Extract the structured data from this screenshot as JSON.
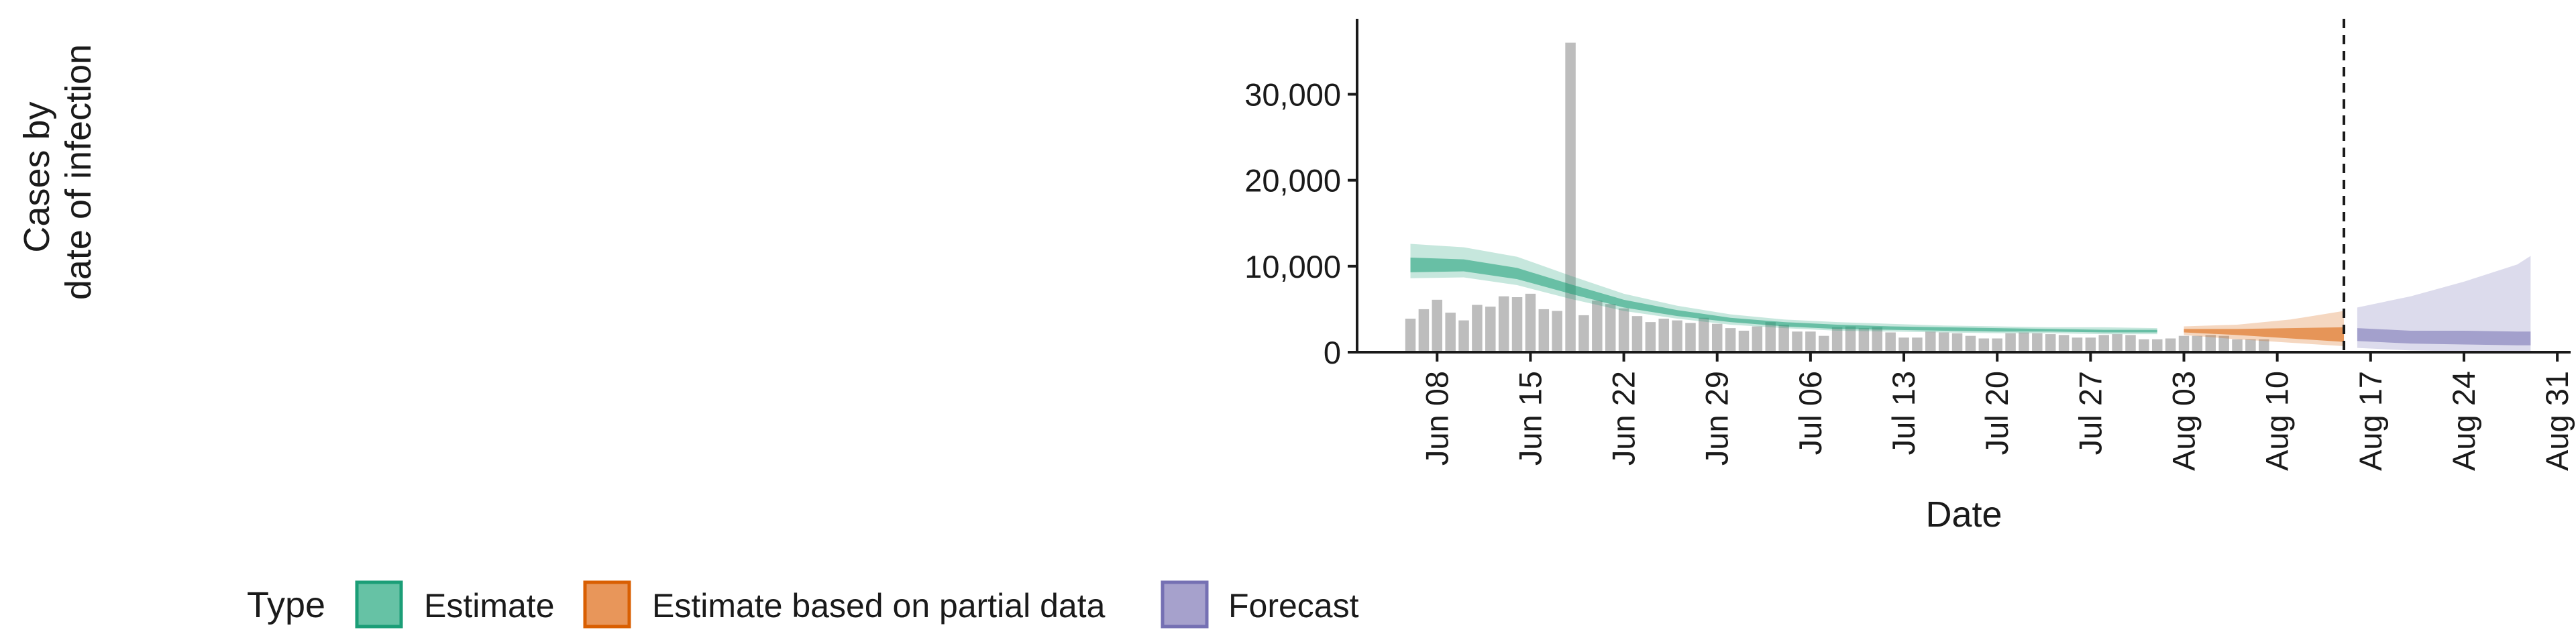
{
  "chart_data": {
    "type": "bar",
    "title": "",
    "xlabel": "Date",
    "ylabel_lines": [
      "Cases by",
      "date of infection"
    ],
    "ylim": [
      0,
      38000
    ],
    "yticks": [
      0,
      10000,
      20000,
      30000
    ],
    "ytick_labels": [
      "0",
      "10,000",
      "20,000",
      "30,000"
    ],
    "xlim": [
      "2020-06-02",
      "2020-09-01"
    ],
    "xticks": [
      "2020-06-08",
      "2020-06-15",
      "2020-06-22",
      "2020-06-29",
      "2020-07-06",
      "2020-07-13",
      "2020-07-20",
      "2020-07-27",
      "2020-08-03",
      "2020-08-10",
      "2020-08-17",
      "2020-08-24",
      "2020-08-31"
    ],
    "xtick_labels": [
      "Jun 08",
      "Jun 15",
      "Jun 22",
      "Jun 29",
      "Jul 06",
      "Jul 13",
      "Jul 20",
      "Jul 27",
      "Aug 03",
      "Aug 10",
      "Aug 17",
      "Aug 24",
      "Aug 31"
    ],
    "reference_line_date": "2020-08-15",
    "grid": false,
    "legend_position": "bottom",
    "bars": {
      "start_date": "2020-06-06",
      "color": "#bdbdbd",
      "values": [
        3900,
        5000,
        6100,
        4600,
        3700,
        5500,
        5300,
        6500,
        6400,
        6800,
        5000,
        4800,
        36000,
        4300,
        6000,
        5600,
        5100,
        4200,
        3500,
        3900,
        3700,
        3400,
        4000,
        3300,
        2800,
        2500,
        3000,
        3500,
        3200,
        2400,
        2400,
        1900,
        2900,
        3000,
        2800,
        2900,
        2300,
        1700,
        1700,
        2400,
        2300,
        2200,
        1900,
        1600,
        1600,
        2200,
        2300,
        2200,
        2100,
        2000,
        1700,
        1700,
        2000,
        2100,
        2000,
        1500,
        1500,
        1600,
        1900,
        1900,
        2000,
        1900,
        1500,
        1500,
        1500
      ]
    },
    "legend": {
      "title": "Type",
      "items": [
        {
          "label": "Estimate",
          "fill": "#66c2a5",
          "border": "#1b9e77"
        },
        {
          "label": "Estimate based on partial data",
          "fill": "#e8965a",
          "border": "#d95f02"
        },
        {
          "label": "Forecast",
          "fill": "#a6a1cc",
          "border": "#7570b3"
        }
      ]
    },
    "series": [
      {
        "name": "Estimate",
        "color": "#1b9e77",
        "dates": [
          "2020-06-06",
          "2020-06-10",
          "2020-06-14",
          "2020-06-18",
          "2020-06-22",
          "2020-06-26",
          "2020-06-30",
          "2020-07-04",
          "2020-07-08",
          "2020-07-12",
          "2020-07-16",
          "2020-07-20",
          "2020-07-24",
          "2020-07-28",
          "2020-08-01"
        ],
        "inner_lower": [
          9300,
          9400,
          8500,
          6800,
          5200,
          4200,
          3500,
          3000,
          2700,
          2600,
          2500,
          2400,
          2400,
          2300,
          2300
        ],
        "inner_upper": [
          11000,
          10800,
          9800,
          7900,
          6100,
          4900,
          4000,
          3500,
          3200,
          3000,
          2900,
          2800,
          2700,
          2600,
          2600
        ],
        "outer_lower": [
          8600,
          8700,
          7800,
          6200,
          4800,
          3900,
          3200,
          2800,
          2500,
          2400,
          2300,
          2200,
          2200,
          2100,
          2100
        ],
        "outer_upper": [
          12600,
          12200,
          11100,
          8900,
          6800,
          5400,
          4400,
          3800,
          3500,
          3300,
          3100,
          3000,
          2900,
          2900,
          2800
        ]
      },
      {
        "name": "Estimate based on partial data",
        "color": "#d95f02",
        "dates": [
          "2020-08-03",
          "2020-08-07",
          "2020-08-11",
          "2020-08-15"
        ],
        "inner_lower": [
          2300,
          2000,
          1600,
          1200
        ],
        "inner_upper": [
          2700,
          2700,
          2800,
          2900
        ],
        "outer_lower": [
          2000,
          1500,
          1100,
          700
        ],
        "outer_upper": [
          3000,
          3200,
          3800,
          4800
        ]
      },
      {
        "name": "Forecast",
        "color": "#7570b3",
        "dates": [
          "2020-08-16",
          "2020-08-20",
          "2020-08-24",
          "2020-08-28",
          "2020-08-29"
        ],
        "inner_lower": [
          1300,
          1000,
          900,
          800,
          800
        ],
        "inner_upper": [
          2800,
          2500,
          2500,
          2400,
          2400
        ],
        "outer_lower": [
          500,
          200,
          100,
          100,
          100
        ],
        "outer_upper": [
          5200,
          6500,
          8200,
          10200,
          11200
        ]
      }
    ]
  }
}
